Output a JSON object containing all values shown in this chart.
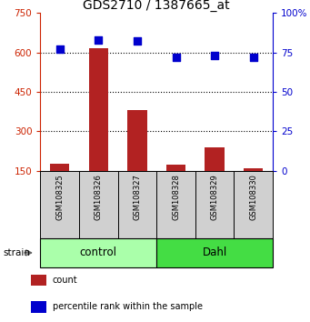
{
  "title": "GDS2710 / 1387665_at",
  "samples": [
    "GSM108325",
    "GSM108326",
    "GSM108327",
    "GSM108328",
    "GSM108329",
    "GSM108330"
  ],
  "counts": [
    175,
    615,
    380,
    173,
    237,
    160
  ],
  "percentiles": [
    77,
    83,
    82,
    72,
    73,
    72
  ],
  "ylim_left": [
    150,
    750
  ],
  "yticks_left": [
    150,
    300,
    450,
    600,
    750
  ],
  "ylim_right": [
    0,
    100
  ],
  "yticks_right": [
    0,
    25,
    50,
    75,
    100
  ],
  "bar_color": "#b22222",
  "dot_color": "#0000cd",
  "groups": [
    {
      "label": "control",
      "start": 0,
      "end": 3,
      "color": "#aaffaa"
    },
    {
      "label": "Dahl",
      "start": 3,
      "end": 6,
      "color": "#44dd44"
    }
  ],
  "strain_label": "strain",
  "legend_items": [
    {
      "color": "#b22222",
      "label": "count"
    },
    {
      "color": "#0000cd",
      "label": "percentile rank within the sample"
    }
  ],
  "bar_width": 0.5,
  "dot_size": 35,
  "title_fontsize": 10,
  "tick_fontsize": 7.5,
  "sample_fontsize": 6,
  "group_label_fontsize": 8.5,
  "legend_fontsize": 7
}
